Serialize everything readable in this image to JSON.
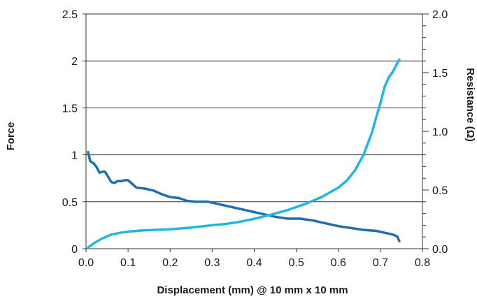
{
  "chart_data": {
    "type": "line",
    "title": "",
    "xlabel": "Displacement (mm) @ 10 mm x 10 mm",
    "ylabel": "Force",
    "y2label": "Resistance (Ω)",
    "xlim": [
      0,
      0.8
    ],
    "ylim": [
      0,
      2.5
    ],
    "y2lim": [
      0,
      2.0
    ],
    "x_ticks": [
      "0.0",
      "0.1",
      "0.2",
      "0.3",
      "0.4",
      "0.5",
      "0.6",
      "0.7",
      "0.8"
    ],
    "y_ticks": [
      "0",
      "0.5",
      "1",
      "1.5",
      "2",
      "2.5"
    ],
    "y2_ticks": [
      "0.0",
      "0.5",
      "1.0",
      "1.5",
      "2.0"
    ],
    "grid": "horizontal",
    "legend": "none",
    "series": [
      {
        "axis": "left",
        "color": "#1f6eb0",
        "points": [
          [
            0.005,
            1.03
          ],
          [
            0.01,
            0.93
          ],
          [
            0.018,
            0.91
          ],
          [
            0.025,
            0.87
          ],
          [
            0.032,
            0.81
          ],
          [
            0.04,
            0.82
          ],
          [
            0.045,
            0.82
          ],
          [
            0.052,
            0.77
          ],
          [
            0.06,
            0.71
          ],
          [
            0.068,
            0.7
          ],
          [
            0.075,
            0.72
          ],
          [
            0.085,
            0.72
          ],
          [
            0.092,
            0.73
          ],
          [
            0.1,
            0.73
          ],
          [
            0.11,
            0.69
          ],
          [
            0.12,
            0.65
          ],
          [
            0.14,
            0.64
          ],
          [
            0.16,
            0.62
          ],
          [
            0.18,
            0.58
          ],
          [
            0.2,
            0.55
          ],
          [
            0.22,
            0.54
          ],
          [
            0.24,
            0.51
          ],
          [
            0.26,
            0.5
          ],
          [
            0.29,
            0.5
          ],
          [
            0.3,
            0.49
          ],
          [
            0.33,
            0.46
          ],
          [
            0.36,
            0.43
          ],
          [
            0.39,
            0.4
          ],
          [
            0.42,
            0.37
          ],
          [
            0.45,
            0.34
          ],
          [
            0.48,
            0.32
          ],
          [
            0.51,
            0.32
          ],
          [
            0.54,
            0.3
          ],
          [
            0.57,
            0.27
          ],
          [
            0.6,
            0.24
          ],
          [
            0.63,
            0.22
          ],
          [
            0.66,
            0.2
          ],
          [
            0.69,
            0.19
          ],
          [
            0.71,
            0.17
          ],
          [
            0.73,
            0.15
          ],
          [
            0.74,
            0.13
          ],
          [
            0.745,
            0.08
          ]
        ]
      },
      {
        "axis": "right",
        "color": "#1fb6e3",
        "points": [
          [
            0.005,
            0.01
          ],
          [
            0.02,
            0.05
          ],
          [
            0.04,
            0.09
          ],
          [
            0.06,
            0.12
          ],
          [
            0.08,
            0.135
          ],
          [
            0.1,
            0.145
          ],
          [
            0.13,
            0.155
          ],
          [
            0.16,
            0.16
          ],
          [
            0.2,
            0.165
          ],
          [
            0.25,
            0.18
          ],
          [
            0.3,
            0.2
          ],
          [
            0.33,
            0.21
          ],
          [
            0.36,
            0.225
          ],
          [
            0.4,
            0.255
          ],
          [
            0.44,
            0.29
          ],
          [
            0.48,
            0.33
          ],
          [
            0.52,
            0.38
          ],
          [
            0.56,
            0.44
          ],
          [
            0.6,
            0.52
          ],
          [
            0.62,
            0.58
          ],
          [
            0.64,
            0.67
          ],
          [
            0.66,
            0.8
          ],
          [
            0.68,
            0.99
          ],
          [
            0.69,
            1.12
          ],
          [
            0.7,
            1.24
          ],
          [
            0.71,
            1.38
          ],
          [
            0.72,
            1.46
          ],
          [
            0.73,
            1.51
          ],
          [
            0.74,
            1.58
          ],
          [
            0.745,
            1.61
          ]
        ]
      }
    ]
  }
}
